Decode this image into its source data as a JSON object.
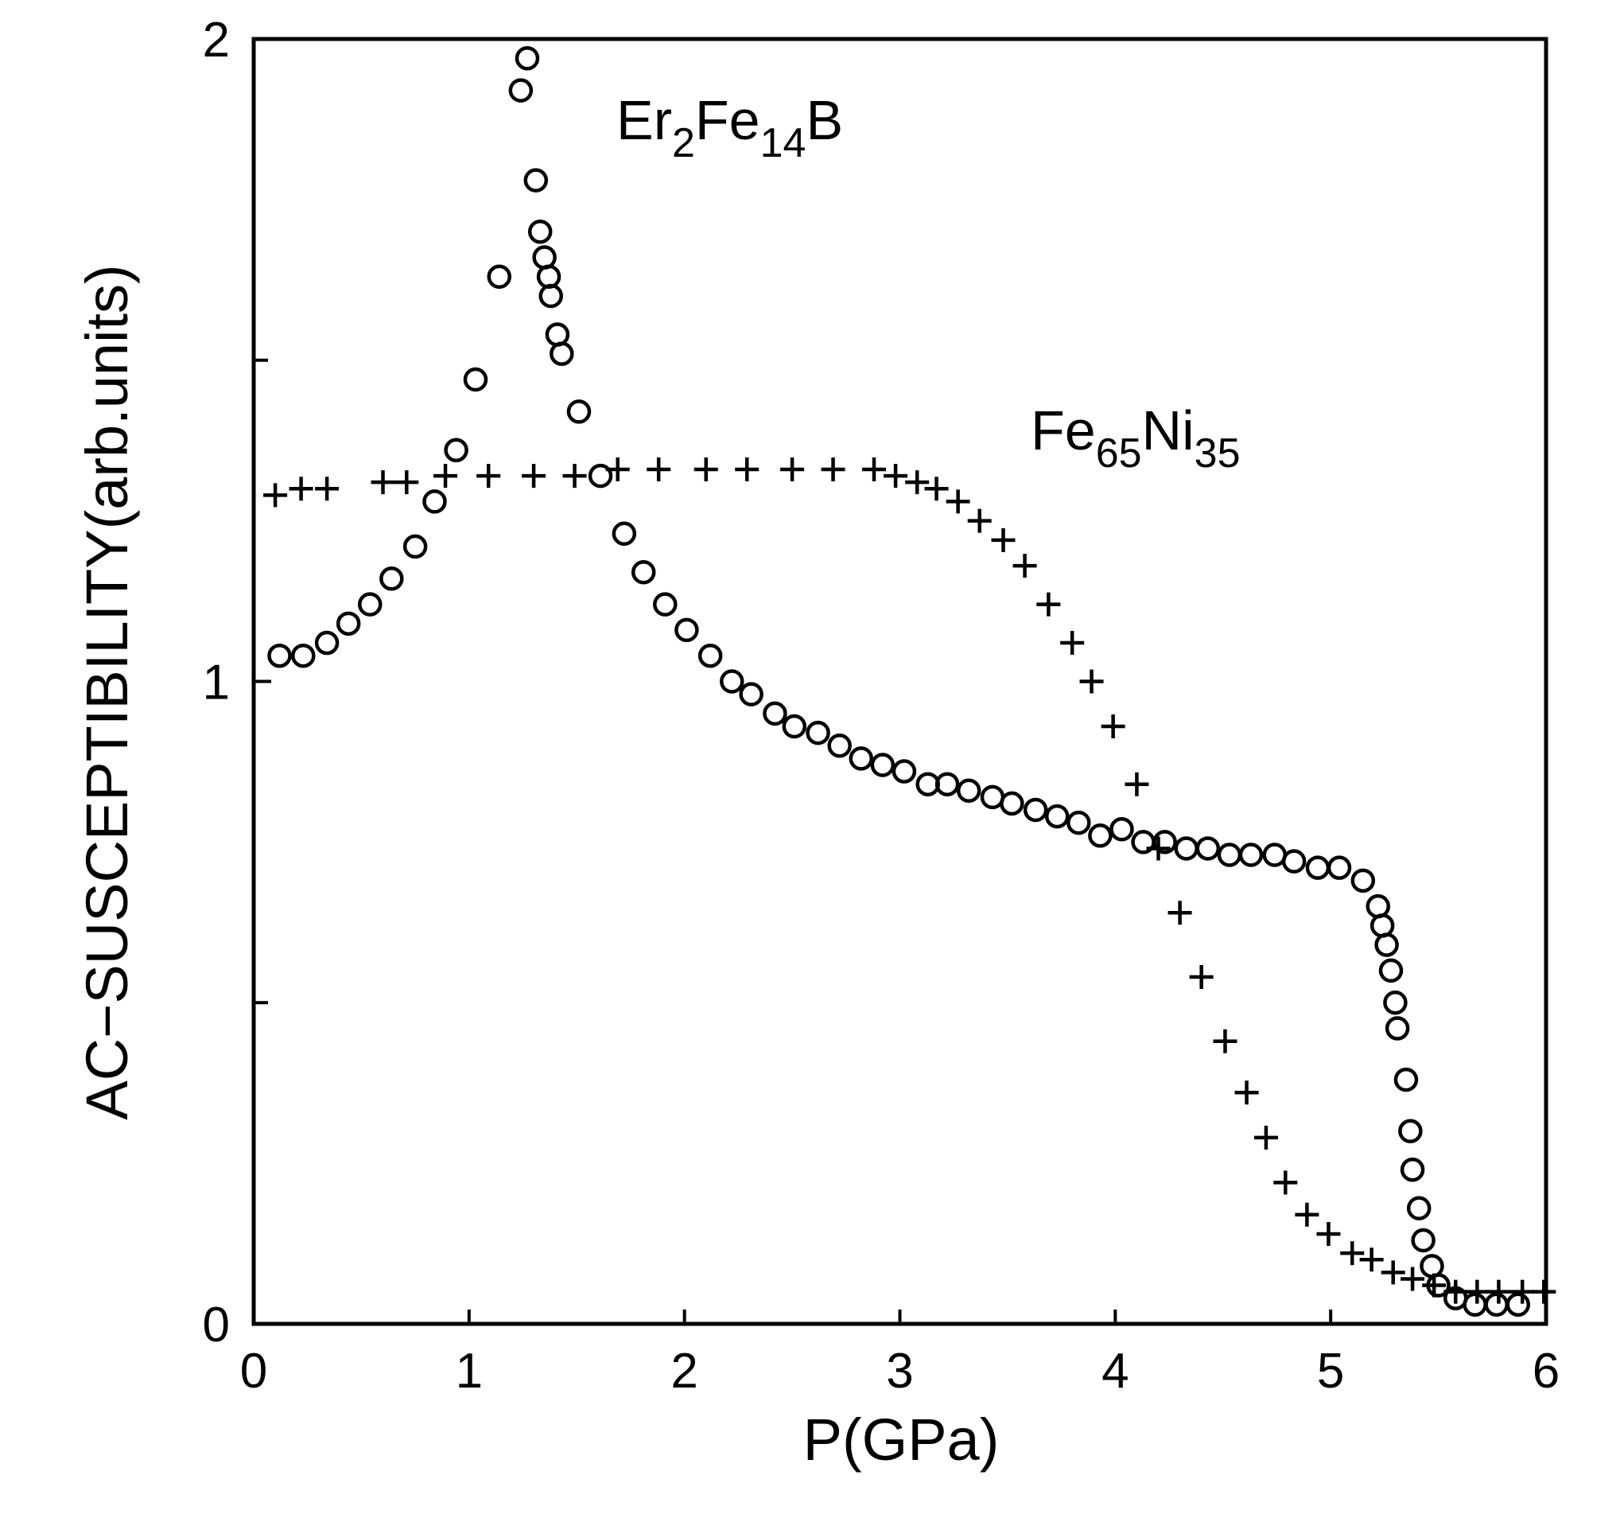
{
  "chart_data": {
    "type": "scatter",
    "title": "",
    "xlabel": "P(GPa)",
    "ylabel": "AC−SUSCEPTIBILITY(arb.units)",
    "xlim": [
      0,
      6
    ],
    "ylim": [
      0,
      2
    ],
    "x_ticks": [
      "0",
      "1",
      "2",
      "3",
      "4",
      "5",
      "6"
    ],
    "y_ticks": [
      "0",
      "1",
      "2"
    ],
    "y_minor_ticks": [
      0.5,
      1.5
    ],
    "grid": false,
    "annotations": [
      {
        "base": "Er",
        "sub1": "2",
        "mid": "Fe",
        "sub2": "14",
        "end": "B",
        "label": "Er2Fe14B"
      },
      {
        "base": "Fe",
        "sub1": "65",
        "mid": "Ni",
        "sub2": "35",
        "end": "",
        "label": "Fe65Ni35"
      }
    ],
    "series": [
      {
        "name": "Er2Fe14B",
        "marker": "circle",
        "x": [
          0.12,
          0.23,
          0.34,
          0.44,
          0.54,
          0.64,
          0.75,
          0.84,
          0.94,
          1.03,
          1.14,
          1.24,
          1.27,
          1.31,
          1.33,
          1.35,
          1.37,
          1.38,
          1.41,
          1.43,
          1.51,
          1.61,
          1.72,
          1.81,
          1.91,
          2.01,
          2.12,
          2.22,
          2.31,
          2.42,
          2.51,
          2.62,
          2.72,
          2.82,
          2.92,
          3.02,
          3.13,
          3.22,
          3.32,
          3.43,
          3.52,
          3.63,
          3.73,
          3.83,
          3.93,
          4.03,
          4.13,
          4.23,
          4.33,
          4.43,
          4.53,
          4.63,
          4.74,
          4.83,
          4.94,
          5.04,
          5.15,
          5.22,
          5.24,
          5.26,
          5.28,
          5.3,
          5.31,
          5.35,
          5.37,
          5.38,
          5.41,
          5.43,
          5.47,
          5.5,
          5.58,
          5.67,
          5.77,
          5.87
        ],
        "y": [
          1.04,
          1.04,
          1.06,
          1.09,
          1.12,
          1.16,
          1.21,
          1.28,
          1.36,
          1.47,
          1.63,
          1.92,
          1.97,
          1.78,
          1.7,
          1.66,
          1.63,
          1.6,
          1.54,
          1.51,
          1.42,
          1.32,
          1.23,
          1.17,
          1.12,
          1.08,
          1.04,
          1.0,
          0.98,
          0.95,
          0.93,
          0.92,
          0.9,
          0.88,
          0.87,
          0.86,
          0.84,
          0.84,
          0.83,
          0.82,
          0.81,
          0.8,
          0.79,
          0.78,
          0.76,
          0.77,
          0.75,
          0.75,
          0.74,
          0.74,
          0.73,
          0.73,
          0.73,
          0.72,
          0.71,
          0.71,
          0.69,
          0.65,
          0.62,
          0.59,
          0.55,
          0.5,
          0.46,
          0.38,
          0.3,
          0.24,
          0.18,
          0.13,
          0.09,
          0.06,
          0.04,
          0.03,
          0.03,
          0.03
        ]
      },
      {
        "name": "Fe65Ni35",
        "marker": "plus",
        "x": [
          0.1,
          0.22,
          0.34,
          0.6,
          0.71,
          0.89,
          1.09,
          1.3,
          1.49,
          1.69,
          1.88,
          2.1,
          2.29,
          2.5,
          2.69,
          2.88,
          2.98,
          3.08,
          3.17,
          3.27,
          3.37,
          3.48,
          3.58,
          3.69,
          3.8,
          3.89,
          3.99,
          4.1,
          4.2,
          4.3,
          4.4,
          4.51,
          4.61,
          4.7,
          4.79,
          4.89,
          4.99,
          5.1,
          5.19,
          5.29,
          5.38,
          5.48,
          5.58,
          5.68,
          5.78,
          5.89,
          5.99
        ],
        "y": [
          1.29,
          1.3,
          1.3,
          1.31,
          1.31,
          1.32,
          1.32,
          1.32,
          1.32,
          1.33,
          1.33,
          1.33,
          1.33,
          1.33,
          1.33,
          1.33,
          1.32,
          1.31,
          1.3,
          1.28,
          1.25,
          1.22,
          1.18,
          1.12,
          1.06,
          1.0,
          0.93,
          0.84,
          0.74,
          0.64,
          0.54,
          0.44,
          0.36,
          0.29,
          0.22,
          0.17,
          0.14,
          0.11,
          0.1,
          0.08,
          0.07,
          0.06,
          0.05,
          0.05,
          0.05,
          0.05,
          0.05
        ]
      }
    ]
  }
}
